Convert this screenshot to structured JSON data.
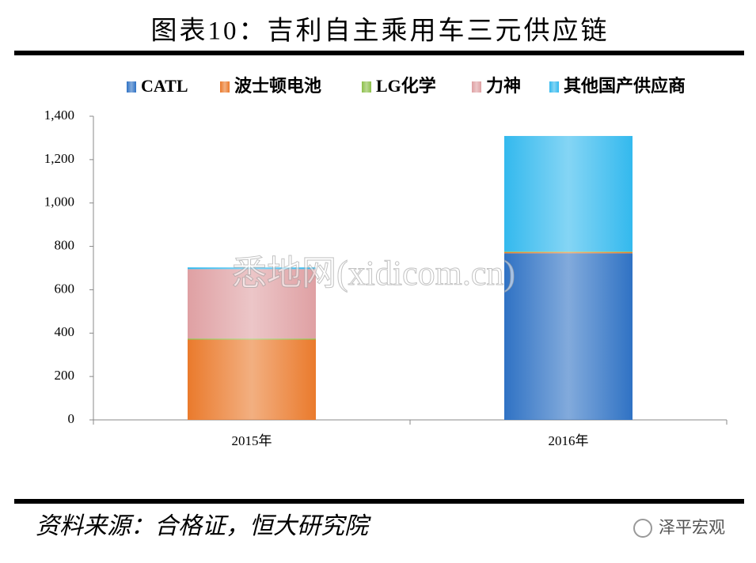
{
  "chart_data": {
    "type": "stacked-bar",
    "title": "图表10：吉利自主乘用车三元供应链",
    "categories": [
      "2015年",
      "2016年"
    ],
    "series": [
      {
        "name": "CATL",
        "color": "#2f72c4",
        "values": [
          0,
          768
        ]
      },
      {
        "name": "波士顿电池",
        "color": "#ea7a2c",
        "values": [
          370,
          5
        ]
      },
      {
        "name": "LG化学",
        "color": "#8cbf4a",
        "values": [
          5,
          3
        ]
      },
      {
        "name": "力神",
        "color": "#dfa0a3",
        "values": [
          320,
          0
        ]
      },
      {
        "name": "其他国产供应商",
        "color": "#33b9ee",
        "values": [
          8,
          533
        ]
      }
    ],
    "ylim": [
      0,
      1400
    ],
    "yticks": [
      0,
      200,
      400,
      600,
      800,
      {
        "value": 1000,
        "label": "1,000"
      },
      {
        "value": 1200,
        "label": "1,200"
      },
      {
        "value": 1400,
        "label": "1,400"
      }
    ],
    "legend": "top"
  },
  "watermark": "悉地网(xidicom.cn)",
  "footer": {
    "source": "资料来源：合格证，恒大研究院",
    "brand": "泽平宏观"
  }
}
